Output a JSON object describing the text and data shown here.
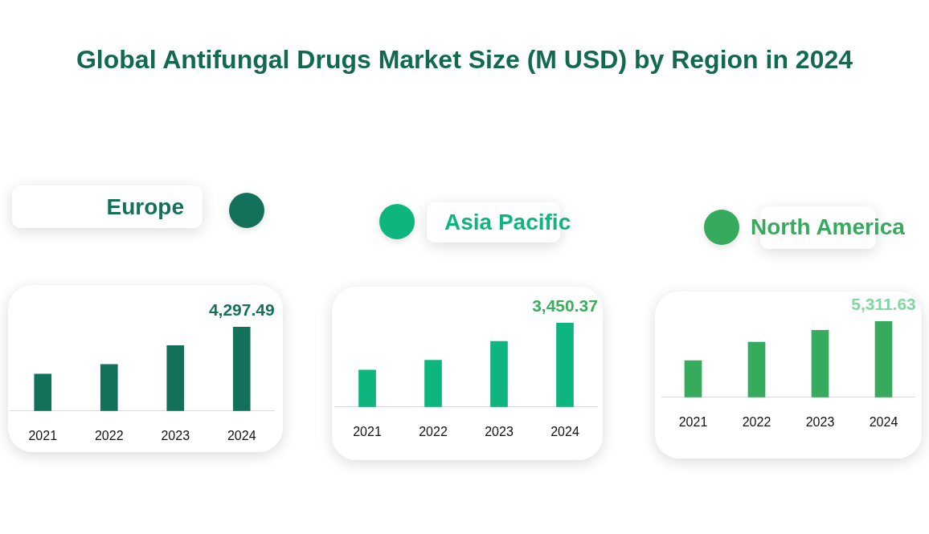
{
  "chart_data": [
    {
      "type": "other",
      "title": "Global Antifungal Drugs Market Size (M USD) by Region in 2024"
    },
    {
      "type": "bar",
      "title": "Europe",
      "categories": [
        "2021",
        "2022",
        "2023",
        "2024"
      ],
      "values": [
        1880,
        2380,
        3340,
        4297.49
      ],
      "value_labels": [
        null,
        null,
        null,
        "4,297.49"
      ],
      "color": "#13705b",
      "tick_labels": "x"
    },
    {
      "type": "bar",
      "title": "Asia Pacific",
      "categories": [
        "2021",
        "2022",
        "2023",
        "2024"
      ],
      "values": [
        1510,
        1920,
        2690,
        3450.37
      ],
      "value_labels": [
        null,
        null,
        null,
        "3,450.37"
      ],
      "color": "#0eb57f",
      "tick_labels": "x"
    },
    {
      "type": "bar",
      "title": "North America",
      "categories": [
        "2021",
        "2022",
        "2023",
        "2024"
      ],
      "values": [
        2560,
        3850,
        4670,
        5311.63
      ],
      "value_labels": [
        null,
        null,
        null,
        "5,311.63"
      ],
      "color": "#36aa5d",
      "tick_labels": "x"
    }
  ]
}
